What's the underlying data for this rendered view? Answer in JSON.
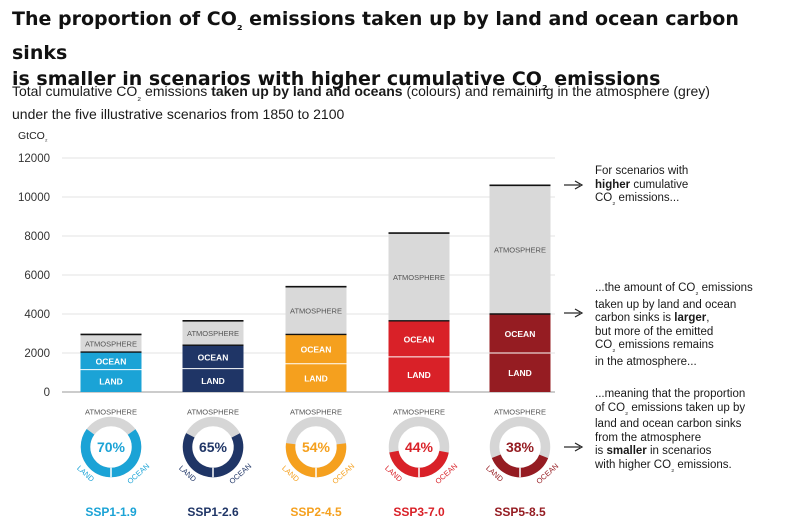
{
  "title_parts": [
    "The proportion of CO",
    "₂",
    " emissions taken up by land and ocean carbon sinks",
    "is smaller in scenarios with higher cumulative CO",
    "₂",
    " emissions"
  ],
  "subtitle_parts": [
    "Total cumulative CO",
    "₂",
    " emissions ",
    "taken up by land and oceans",
    " (colours) and remaining in the atmosphere (grey)",
    "under the five illustrative scenarios from 1850 to 2100"
  ],
  "annotations": {
    "a1": [
      "For scenarios with",
      "higher",
      " cumulative",
      "CO",
      "₂",
      " emissions..."
    ],
    "a2": [
      "...the amount of CO",
      "₂",
      " emissions",
      "taken up by land and ocean",
      "carbon sinks is ",
      "larger",
      ",",
      "but more of the emitted",
      "CO",
      "₂",
      " emissions remains",
      "in the atmosphere..."
    ],
    "a3": [
      "...meaning that the proportion",
      "of CO",
      "₂",
      " emissions taken up by",
      "land and ocean carbon sinks",
      "from the atmosphere",
      "is ",
      "smaller",
      " in scenarios",
      "with higher CO",
      "₂",
      " emissions."
    ]
  },
  "colors": {
    "atmosphere": "#d9d9d9",
    "donut_grey": "#d6d6d6",
    "scenarios": [
      "#1ba3d6",
      "#1f3566",
      "#f5a01e",
      "#d92128",
      "#951c22"
    ]
  },
  "chart_data": {
    "type": "bar",
    "stacked": true,
    "yunit": "GtCO₂",
    "ylim": [
      0,
      12000
    ],
    "yticks": [
      "0",
      "2000",
      "4000",
      "6000",
      "8000",
      "10000",
      "12000"
    ],
    "grid": true,
    "categories": [
      "SSP1-1.9",
      "SSP1-2.6",
      "SSP2-4.5",
      "SSP3-7.0",
      "SSP5-8.5"
    ],
    "series": [
      {
        "name": "LAND",
        "values": [
          1150,
          1200,
          1450,
          1800,
          2000
        ]
      },
      {
        "name": "OCEAN",
        "values": [
          900,
          1200,
          1500,
          1850,
          2000
        ]
      },
      {
        "name": "ATMOSPHERE",
        "values": [
          900,
          1250,
          2450,
          4500,
          6600
        ]
      }
    ],
    "totals": [
      2950,
      3650,
      5400,
      8150,
      10600
    ],
    "sink_share_percent": [
      "70%",
      "65%",
      "54%",
      "44%",
      "38%"
    ],
    "donut_labels": {
      "top": "ATMOSPHERE",
      "left": "LAND",
      "right": "OCEAN"
    }
  }
}
